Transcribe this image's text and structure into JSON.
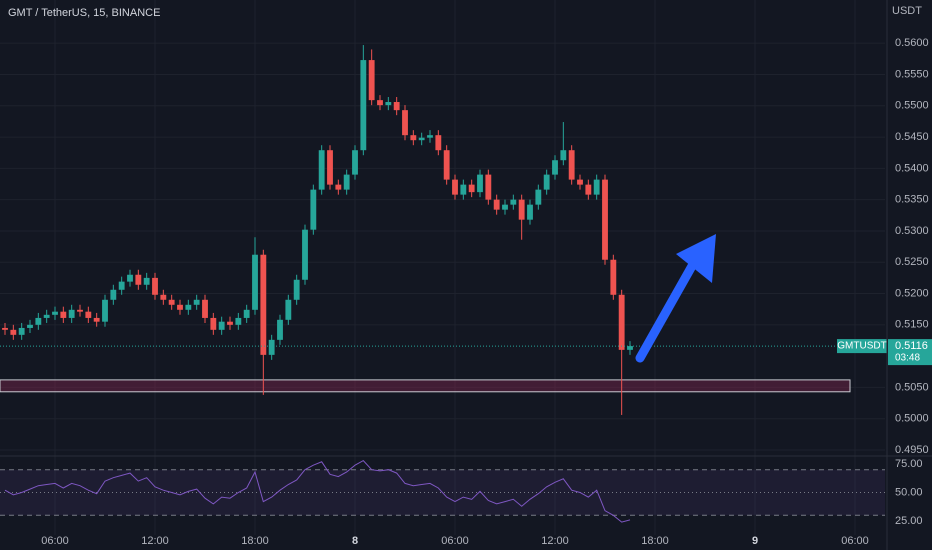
{
  "chart_data": {
    "type": "candlestick",
    "title": "GMT / TetherUS, 15, BINANCE",
    "currency": "USDT",
    "symbol": "GMTUSDT",
    "last_price": 0.5116,
    "countdown": "03:48",
    "up_color": "#26a69a",
    "down_color": "#ef5350",
    "grid": true,
    "x": [
      3,
      3.5,
      4,
      4.5,
      5,
      5.5,
      6,
      6.5,
      7,
      7.5,
      8,
      8.5,
      9,
      9.5,
      10,
      10.5,
      11,
      11.5,
      12,
      12.5,
      13,
      13.5,
      14,
      14.5,
      15,
      15.5,
      16,
      16.5,
      17,
      17.5,
      18,
      18.5,
      19,
      19.5,
      20,
      20.5,
      21,
      21.5,
      22,
      22.5,
      23,
      23.5,
      24,
      24.5,
      25,
      25.5,
      26,
      26.5,
      27,
      27.5,
      28,
      28.5,
      29,
      29.5,
      30,
      30.5,
      31,
      31.5,
      32,
      32.5,
      33,
      33.5,
      34,
      34.5,
      35,
      35.5,
      36,
      36.5,
      37,
      37.5,
      38,
      38.5,
      39,
      39.5,
      40,
      40.5
    ],
    "open": [
      0.5145,
      0.5142,
      0.5134,
      0.5145,
      0.515,
      0.5161,
      0.5166,
      0.5171,
      0.5161,
      0.5174,
      0.5171,
      0.5161,
      0.5155,
      0.519,
      0.5206,
      0.5219,
      0.523,
      0.5214,
      0.5225,
      0.5198,
      0.519,
      0.5182,
      0.5174,
      0.5182,
      0.519,
      0.5161,
      0.5142,
      0.5155,
      0.515,
      0.5161,
      0.5174,
      0.5262,
      0.5102,
      0.5126,
      0.5158,
      0.519,
      0.5222,
      0.5302,
      0.5366,
      0.5429,
      0.5374,
      0.5366,
      0.539,
      0.5429,
      0.5573,
      0.5509,
      0.5501,
      0.5506,
      0.5493,
      0.5453,
      0.5445,
      0.5449,
      0.5453,
      0.5429,
      0.5382,
      0.5358,
      0.5374,
      0.5362,
      0.539,
      0.535,
      0.5334,
      0.5342,
      0.535,
      0.5318,
      0.5342,
      0.5366,
      0.539,
      0.5413,
      0.5429,
      0.5382,
      0.5374,
      0.5358,
      0.5382,
      0.5254,
      0.5198,
      0.511
    ],
    "high": [
      0.5153,
      0.515,
      0.5153,
      0.5158,
      0.5169,
      0.5174,
      0.5179,
      0.5179,
      0.5182,
      0.5182,
      0.5179,
      0.5169,
      0.5198,
      0.5214,
      0.5227,
      0.5238,
      0.5238,
      0.5233,
      0.5233,
      0.5206,
      0.5198,
      0.519,
      0.519,
      0.5198,
      0.5198,
      0.5169,
      0.5163,
      0.5163,
      0.5169,
      0.5182,
      0.529,
      0.527,
      0.5134,
      0.5166,
      0.5198,
      0.523,
      0.531,
      0.5374,
      0.5437,
      0.5437,
      0.5382,
      0.5398,
      0.5437,
      0.5597,
      0.559,
      0.5517,
      0.5514,
      0.5514,
      0.5501,
      0.5461,
      0.5457,
      0.5461,
      0.5461,
      0.5437,
      0.539,
      0.5382,
      0.5382,
      0.5398,
      0.5398,
      0.5358,
      0.535,
      0.5358,
      0.5358,
      0.535,
      0.5374,
      0.5398,
      0.5421,
      0.5474,
      0.5437,
      0.539,
      0.5382,
      0.539,
      0.539,
      0.5262,
      0.5206,
      0.5124
    ],
    "low": [
      0.5134,
      0.5126,
      0.5126,
      0.5137,
      0.5142,
      0.5153,
      0.5158,
      0.5153,
      0.5153,
      0.5163,
      0.5153,
      0.5147,
      0.5147,
      0.5182,
      0.5198,
      0.5211,
      0.5206,
      0.5206,
      0.519,
      0.5182,
      0.5174,
      0.5166,
      0.5166,
      0.5174,
      0.5153,
      0.5134,
      0.5134,
      0.5142,
      0.5142,
      0.5153,
      0.5166,
      0.5038,
      0.5094,
      0.5118,
      0.515,
      0.5182,
      0.5214,
      0.5294,
      0.5358,
      0.5366,
      0.5358,
      0.5358,
      0.5382,
      0.5421,
      0.5501,
      0.5493,
      0.5493,
      0.5485,
      0.5445,
      0.5437,
      0.5437,
      0.5441,
      0.5421,
      0.5374,
      0.535,
      0.535,
      0.5354,
      0.5354,
      0.5342,
      0.5326,
      0.5326,
      0.5334,
      0.5286,
      0.531,
      0.5334,
      0.5358,
      0.5382,
      0.5405,
      0.5374,
      0.5366,
      0.535,
      0.535,
      0.5246,
      0.519,
      0.5006,
      0.5102
    ],
    "close": [
      0.5142,
      0.5134,
      0.5145,
      0.515,
      0.5161,
      0.5166,
      0.5171,
      0.5161,
      0.5174,
      0.5171,
      0.5161,
      0.5155,
      0.519,
      0.5206,
      0.5219,
      0.523,
      0.5214,
      0.5225,
      0.5198,
      0.519,
      0.5182,
      0.5174,
      0.5182,
      0.519,
      0.5161,
      0.5142,
      0.5155,
      0.515,
      0.5161,
      0.5174,
      0.5262,
      0.5102,
      0.5126,
      0.5158,
      0.519,
      0.5222,
      0.5302,
      0.5366,
      0.5429,
      0.5374,
      0.5366,
      0.539,
      0.5429,
      0.5573,
      0.5509,
      0.5501,
      0.5506,
      0.5493,
      0.5453,
      0.5445,
      0.5449,
      0.5453,
      0.5429,
      0.5382,
      0.5358,
      0.5374,
      0.5362,
      0.539,
      0.535,
      0.5334,
      0.5342,
      0.535,
      0.5318,
      0.5342,
      0.5366,
      0.539,
      0.5413,
      0.5429,
      0.5382,
      0.5374,
      0.5358,
      0.5382,
      0.5254,
      0.5198,
      0.511,
      0.5116
    ],
    "xlim": [
      2.7,
      55.8
    ],
    "xticks": [
      {
        "value": 6,
        "label": "06:00"
      },
      {
        "value": 12,
        "label": "12:00"
      },
      {
        "value": 18,
        "label": "18:00"
      },
      {
        "value": 24,
        "label": "8"
      },
      {
        "value": 30,
        "label": "06:00"
      },
      {
        "value": 36,
        "label": "12:00"
      },
      {
        "value": 42,
        "label": "18:00"
      },
      {
        "value": 48,
        "label": "9"
      },
      {
        "value": 54,
        "label": "06:00"
      }
    ],
    "ylim": [
      0.4942,
      0.5669
    ],
    "yticks": [
      {
        "value": 0.56,
        "label": "0.5600"
      },
      {
        "value": 0.555,
        "label": "0.5550"
      },
      {
        "value": 0.55,
        "label": "0.5500"
      },
      {
        "value": 0.545,
        "label": "0.5450"
      },
      {
        "value": 0.54,
        "label": "0.5400"
      },
      {
        "value": 0.535,
        "label": "0.5350"
      },
      {
        "value": 0.53,
        "label": "0.5300"
      },
      {
        "value": 0.525,
        "label": "0.5250"
      },
      {
        "value": 0.52,
        "label": "0.5200"
      },
      {
        "value": 0.515,
        "label": "0.5150"
      },
      {
        "value": 0.505,
        "label": "0.5050"
      },
      {
        "value": 0.5,
        "label": "0.5000"
      },
      {
        "value": 0.495,
        "label": "0.4950"
      }
    ],
    "support_zone": [
      0.5043,
      0.5062
    ],
    "rsi": {
      "color": "#7e57c2",
      "values": [
        52,
        48,
        50,
        53,
        56,
        57,
        58,
        54,
        58,
        56,
        52,
        49,
        60,
        63,
        65,
        67,
        60,
        63,
        55,
        52,
        50,
        48,
        51,
        53,
        45,
        40,
        46,
        45,
        50,
        54,
        68,
        42,
        46,
        52,
        57,
        61,
        70,
        74,
        77,
        66,
        64,
        68,
        74,
        78,
        70,
        69,
        70,
        67,
        58,
        56,
        57,
        58,
        54,
        46,
        42,
        46,
        44,
        51,
        43,
        40,
        42,
        44,
        38,
        44,
        49,
        55,
        59,
        62,
        52,
        50,
        46,
        52,
        34,
        30,
        24,
        26
      ],
      "ylim": [
        12.7,
        80.3
      ],
      "band": [
        30,
        70
      ],
      "yticks": [
        {
          "value": 75,
          "label": "75.00"
        },
        {
          "value": 50,
          "label": "50.00"
        },
        {
          "value": 25,
          "label": "25.00"
        }
      ]
    }
  }
}
